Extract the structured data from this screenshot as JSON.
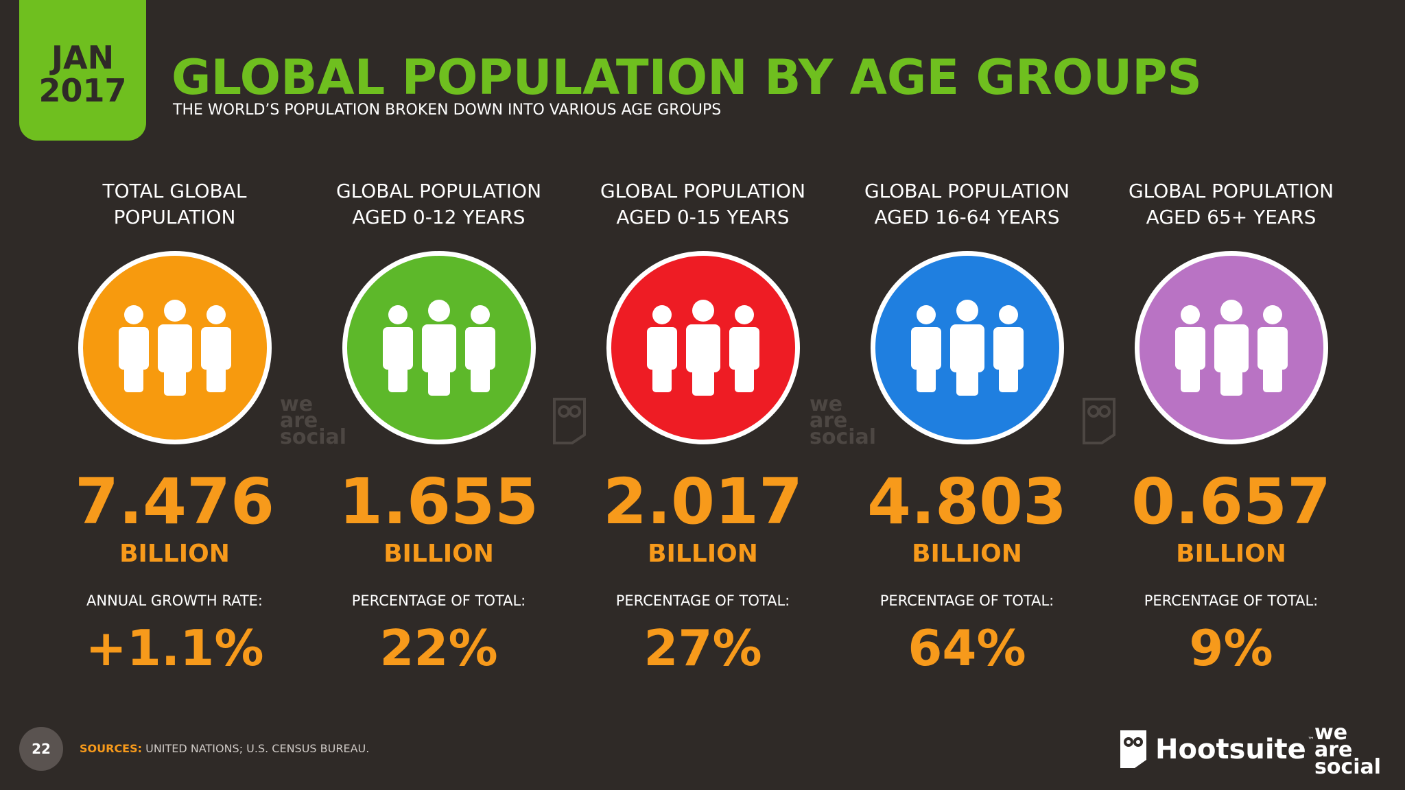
{
  "header": {
    "date_month": "JAN",
    "date_year": "2017",
    "title": "GLOBAL POPULATION BY AGE GROUPS",
    "subtitle": "THE WORLD’S POPULATION BROKEN DOWN INTO VARIOUS AGE GROUPS"
  },
  "columns": [
    {
      "label_line1": "TOTAL GLOBAL",
      "label_line2": "POPULATION",
      "value": "7.476",
      "unit": "BILLION",
      "metric_label": "ANNUAL GROWTH RATE:",
      "metric_value": "+1.1%",
      "color": "#f79a0e",
      "icon": "people-group-icon"
    },
    {
      "label_line1": "GLOBAL POPULATION",
      "label_line2": "AGED 0-12 YEARS",
      "value": "1.655",
      "unit": "BILLION",
      "metric_label": "PERCENTAGE OF TOTAL:",
      "metric_value": "22%",
      "color": "#5db82a",
      "icon": "people-group-icon"
    },
    {
      "label_line1": "GLOBAL POPULATION",
      "label_line2": "AGED 0-15 YEARS",
      "value": "2.017",
      "unit": "BILLION",
      "metric_label": "PERCENTAGE OF TOTAL:",
      "metric_value": "27%",
      "color": "#ee1c24",
      "icon": "people-group-icon"
    },
    {
      "label_line1": "GLOBAL POPULATION",
      "label_line2": "AGED 16-64 YEARS",
      "value": "4.803",
      "unit": "BILLION",
      "metric_label": "PERCENTAGE OF TOTAL:",
      "metric_value": "64%",
      "color": "#1f7fe0",
      "icon": "people-group-icon"
    },
    {
      "label_line1": "GLOBAL POPULATION",
      "label_line2": "AGED 65+ YEARS",
      "value": "0.657",
      "unit": "BILLION",
      "metric_label": "PERCENTAGE OF TOTAL:",
      "metric_value": "9%",
      "color": "#b973c4",
      "icon": "people-group-icon"
    }
  ],
  "watermark": {
    "line1": "we",
    "line2": "are",
    "line3": "social"
  },
  "footer": {
    "page_number": "22",
    "sources_label": "SOURCES:",
    "sources_text": "UNITED NATIONS; U.S. CENSUS BUREAU.",
    "hootsuite_brand": "Hootsuite",
    "hootsuite_tm": "™",
    "was_line1": "we",
    "was_line2": "are",
    "was_line3": "social"
  },
  "colors": {
    "background": "#2f2a27",
    "accent_green": "#6fbf1f",
    "accent_orange": "#f79a1b"
  }
}
